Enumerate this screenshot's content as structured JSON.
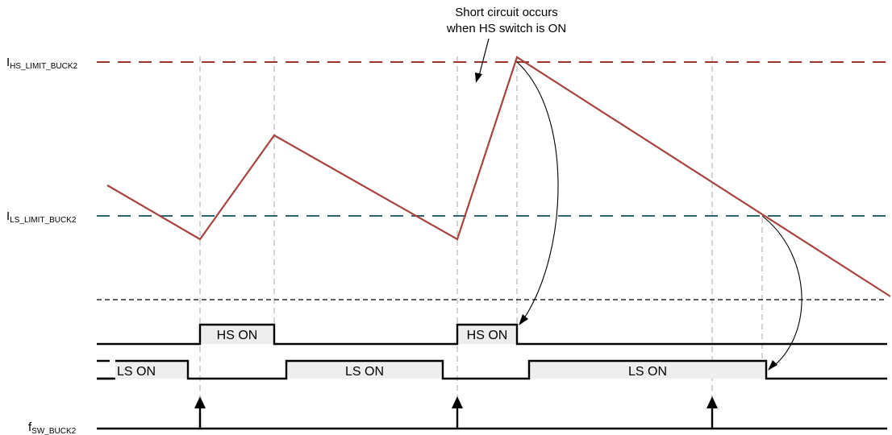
{
  "labels": {
    "hs_limit_main": "I",
    "hs_limit_sub": "HS_LIMIT_BUCK2",
    "ls_limit_main": "I",
    "ls_limit_sub": "LS_LIMIT_BUCK2",
    "fsw_main": "f",
    "fsw_sub": "SW_BUCK2"
  },
  "annotation": {
    "line1": "Short circuit occurs",
    "line2": "when HS switch is ON"
  },
  "pulses": {
    "hs_on": "HS ON",
    "ls_on": "LS ON"
  },
  "colors": {
    "hs_limit": "#a0342e",
    "ls_limit": "#2f6470",
    "current": "#a84440",
    "pulse_fill": "#eeeeee",
    "guide": "#b8b8b8"
  }
}
